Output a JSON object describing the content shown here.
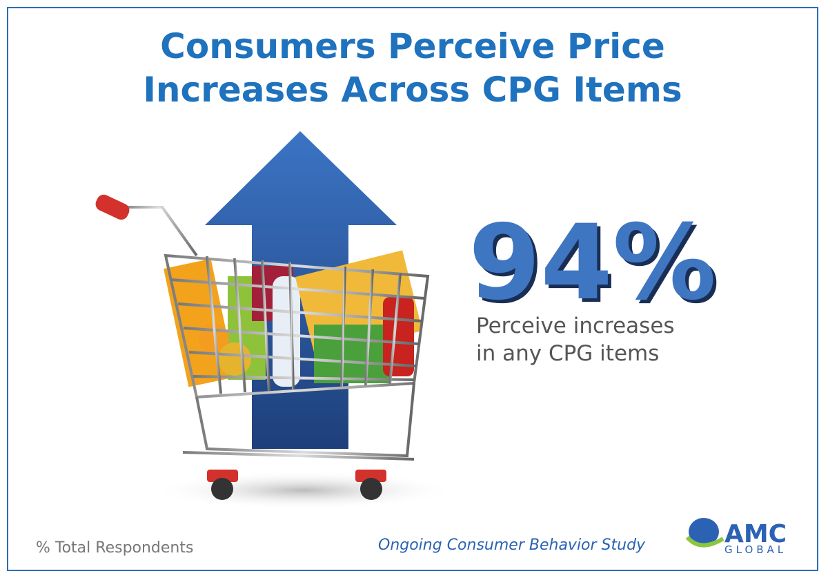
{
  "header": {
    "title": [
      "Consumers Perceive Price",
      "Increases Across CPG Items"
    ]
  },
  "stat": {
    "value": "94%",
    "caption": [
      "Perceive increases",
      "in any CPG items"
    ]
  },
  "footer": {
    "note": "% Total Respondents",
    "source": "Ongoing Consumer Behavior Study",
    "logo": {
      "name": "AMC",
      "sub": "GLOBAL"
    }
  }
}
